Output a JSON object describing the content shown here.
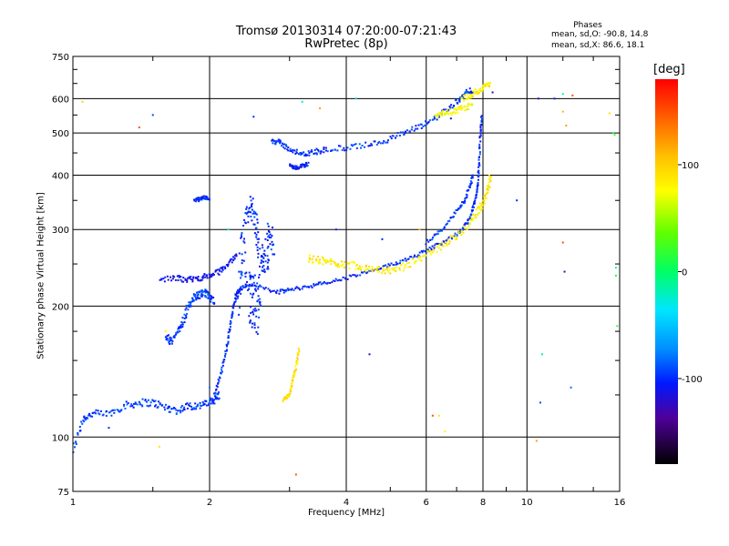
{
  "title": "Tromsø 20130314 07:20:00-07:21:43",
  "subtitle": "RwPretec (8p)",
  "phases": {
    "heading": "Phases",
    "line_o": "mean, sd,O: -90.8, 14.8",
    "line_x": "mean, sd,X:  86.6, 18.1"
  },
  "colorbar": {
    "unit_label": "[deg]",
    "range": [
      -180,
      180
    ],
    "tick_labels": [
      "100",
      "0",
      "-100"
    ],
    "tick_values": [
      100,
      0,
      -100
    ]
  },
  "chart_data": {
    "type": "scatter",
    "xlabel": "Frequency [MHz]",
    "ylabel": "Stationary phase Virtual Height [km]",
    "xscale": "log",
    "yscale": "log",
    "xlim": [
      1,
      16
    ],
    "ylim": [
      75,
      750
    ],
    "x_ticks": [
      1,
      2,
      4,
      6,
      8,
      10,
      16
    ],
    "x_tick_labels": [
      "1",
      "2",
      "4",
      "6",
      "8",
      "10",
      "16"
    ],
    "y_ticks": [
      75,
      100,
      200,
      300,
      400,
      500,
      600,
      750
    ],
    "y_tick_labels": [
      "75",
      "100",
      "200",
      "300",
      "400",
      "500",
      "600",
      "750"
    ],
    "grid": true,
    "traces": [
      {
        "mode": "O",
        "phase": -95,
        "spread": 0.02,
        "points": [
          [
            1.0,
            93
          ],
          [
            1.05,
            110
          ],
          [
            1.1,
            113
          ],
          [
            1.2,
            113
          ],
          [
            1.3,
            118
          ],
          [
            1.4,
            120
          ],
          [
            1.5,
            120
          ],
          [
            1.6,
            117
          ],
          [
            1.7,
            115
          ],
          [
            1.8,
            118
          ],
          [
            1.9,
            118
          ],
          [
            2.0,
            120
          ],
          [
            2.05,
            122
          ],
          [
            2.1,
            125
          ]
        ]
      },
      {
        "mode": "O",
        "phase": -100,
        "spread": 0.01,
        "points": [
          [
            2.05,
            125
          ],
          [
            2.12,
            140
          ],
          [
            2.18,
            160
          ],
          [
            2.22,
            180
          ],
          [
            2.26,
            200
          ],
          [
            2.3,
            215
          ],
          [
            2.35,
            220
          ],
          [
            2.5,
            225
          ],
          [
            2.8,
            215
          ],
          [
            3.0,
            218
          ],
          [
            3.3,
            222
          ],
          [
            3.6,
            226
          ],
          [
            4.0,
            232
          ],
          [
            4.5,
            240
          ],
          [
            5.0,
            248
          ],
          [
            5.5,
            258
          ],
          [
            6.0,
            268
          ],
          [
            6.5,
            280
          ],
          [
            7.0,
            292
          ],
          [
            7.3,
            305
          ],
          [
            7.5,
            320
          ],
          [
            7.7,
            350
          ],
          [
            7.8,
            380
          ],
          [
            7.85,
            430
          ],
          [
            7.9,
            500
          ],
          [
            7.95,
            550
          ]
        ]
      },
      {
        "mode": "O",
        "phase": -110,
        "spread": 0.015,
        "points": [
          [
            1.55,
            230
          ],
          [
            1.7,
            232
          ],
          [
            1.8,
            230
          ],
          [
            1.9,
            232
          ],
          [
            2.0,
            235
          ],
          [
            2.1,
            240
          ],
          [
            2.2,
            250
          ],
          [
            2.3,
            265
          ]
        ]
      },
      {
        "mode": "O",
        "phase": -95,
        "spread": 0.02,
        "points": [
          [
            1.6,
            170
          ],
          [
            1.65,
            165
          ],
          [
            1.7,
            175
          ],
          [
            1.75,
            185
          ],
          [
            1.8,
            200
          ],
          [
            1.85,
            210
          ],
          [
            1.9,
            212
          ],
          [
            1.95,
            215
          ],
          [
            2.0,
            210
          ],
          [
            2.05,
            205
          ]
        ]
      },
      {
        "mode": "O",
        "phase": -100,
        "spread": 0.05,
        "points": [
          [
            2.3,
            200
          ],
          [
            2.35,
            250
          ],
          [
            2.4,
            300
          ],
          [
            2.45,
            350
          ],
          [
            2.5,
            320
          ],
          [
            2.55,
            280
          ],
          [
            2.6,
            260
          ],
          [
            2.65,
            240
          ],
          [
            2.7,
            300
          ],
          [
            2.75,
            270
          ],
          [
            2.5,
            220
          ],
          [
            2.4,
            230
          ],
          [
            2.6,
            200
          ],
          [
            2.45,
            190
          ],
          [
            2.55,
            180
          ]
        ]
      },
      {
        "mode": "O",
        "phase": -98,
        "spread": 0.015,
        "points": [
          [
            2.75,
            480
          ],
          [
            2.85,
            475
          ],
          [
            3.0,
            460
          ],
          [
            3.2,
            445
          ],
          [
            3.4,
            452
          ],
          [
            3.6,
            458
          ],
          [
            4.0,
            462
          ],
          [
            4.5,
            470
          ],
          [
            5.0,
            485
          ],
          [
            5.5,
            505
          ],
          [
            6.0,
            525
          ],
          [
            6.5,
            555
          ],
          [
            7.0,
            590
          ],
          [
            7.3,
            615
          ],
          [
            7.6,
            630
          ]
        ]
      },
      {
        "mode": "O",
        "phase": -105,
        "spread": 0.01,
        "points": [
          [
            3.0,
            420
          ],
          [
            3.1,
            415
          ],
          [
            3.2,
            420
          ],
          [
            3.3,
            425
          ]
        ]
      },
      {
        "mode": "O",
        "phase": -100,
        "spread": 0.01,
        "points": [
          [
            1.85,
            350
          ],
          [
            1.9,
            352
          ],
          [
            1.95,
            355
          ],
          [
            2.0,
            355
          ]
        ]
      },
      {
        "mode": "O",
        "phase": -95,
        "spread": 0.01,
        "points": [
          [
            6.0,
            280
          ],
          [
            6.5,
            300
          ],
          [
            7.0,
            330
          ],
          [
            7.3,
            350
          ],
          [
            7.5,
            380
          ],
          [
            7.6,
            400
          ]
        ]
      },
      {
        "mode": "X",
        "phase": 85,
        "spread": 0.02,
        "points": [
          [
            3.3,
            258
          ],
          [
            3.5,
            255
          ],
          [
            3.7,
            252
          ],
          [
            3.9,
            250
          ],
          [
            4.2,
            248
          ],
          [
            4.5,
            245
          ],
          [
            4.8,
            242
          ],
          [
            5.1,
            240
          ],
          [
            5.5,
            250
          ],
          [
            6.0,
            262
          ],
          [
            6.5,
            275
          ],
          [
            7.0,
            290
          ],
          [
            7.5,
            310
          ],
          [
            7.8,
            330
          ],
          [
            8.0,
            345
          ],
          [
            8.2,
            370
          ],
          [
            8.3,
            400
          ]
        ]
      },
      {
        "mode": "X",
        "phase": 80,
        "spread": 0.015,
        "points": [
          [
            7.2,
            600
          ],
          [
            7.5,
            610
          ],
          [
            7.8,
            625
          ],
          [
            8.1,
            640
          ],
          [
            8.3,
            650
          ]
        ]
      },
      {
        "mode": "X",
        "phase": 75,
        "spread": 0.015,
        "points": [
          [
            6.3,
            545
          ],
          [
            6.6,
            555
          ],
          [
            6.9,
            560
          ],
          [
            7.2,
            570
          ],
          [
            7.6,
            580
          ]
        ]
      },
      {
        "mode": "X",
        "phase": 90,
        "spread": 0.01,
        "points": [
          [
            2.9,
            122
          ],
          [
            3.0,
            125
          ],
          [
            3.05,
            135
          ],
          [
            3.1,
            145
          ],
          [
            3.15,
            160
          ]
        ]
      }
    ],
    "sparse_points": [
      [
        1.05,
        590,
        100
      ],
      [
        1.4,
        515,
        150
      ],
      [
        1.55,
        95,
        90
      ],
      [
        1.6,
        175,
        80
      ],
      [
        1.2,
        105,
        -100
      ],
      [
        1.5,
        550,
        -90
      ],
      [
        2.5,
        545,
        -100
      ],
      [
        3.2,
        590,
        -30
      ],
      [
        3.1,
        82,
        150
      ],
      [
        3.5,
        570,
        120
      ],
      [
        4.2,
        600,
        -40
      ],
      [
        4.5,
        155,
        -120
      ],
      [
        6.2,
        112,
        150
      ],
      [
        6.6,
        103,
        80
      ],
      [
        6.8,
        540,
        -120
      ],
      [
        8.4,
        620,
        -130
      ],
      [
        9.5,
        350,
        -100
      ],
      [
        10.6,
        600,
        -110
      ],
      [
        10.7,
        120,
        -90
      ],
      [
        10.8,
        155,
        -10
      ],
      [
        11.5,
        600,
        -100
      ],
      [
        12.0,
        615,
        -10
      ],
      [
        12.0,
        560,
        110
      ],
      [
        12.2,
        520,
        120
      ],
      [
        12.0,
        280,
        150
      ],
      [
        12.1,
        240,
        -120
      ],
      [
        12.5,
        130,
        -80
      ],
      [
        12.6,
        610,
        150
      ],
      [
        15.2,
        555,
        90
      ],
      [
        15.5,
        500,
        0
      ],
      [
        15.6,
        495,
        30
      ],
      [
        15.7,
        245,
        -20
      ],
      [
        15.8,
        180,
        20
      ],
      [
        15.7,
        235,
        0
      ],
      [
        10.5,
        98,
        120
      ],
      [
        5.8,
        300,
        110
      ],
      [
        4.8,
        285,
        -100
      ],
      [
        3.8,
        300,
        -100
      ],
      [
        2.0,
        130,
        -80
      ],
      [
        2.2,
        300,
        -20
      ],
      [
        6.4,
        112,
        90
      ]
    ]
  }
}
